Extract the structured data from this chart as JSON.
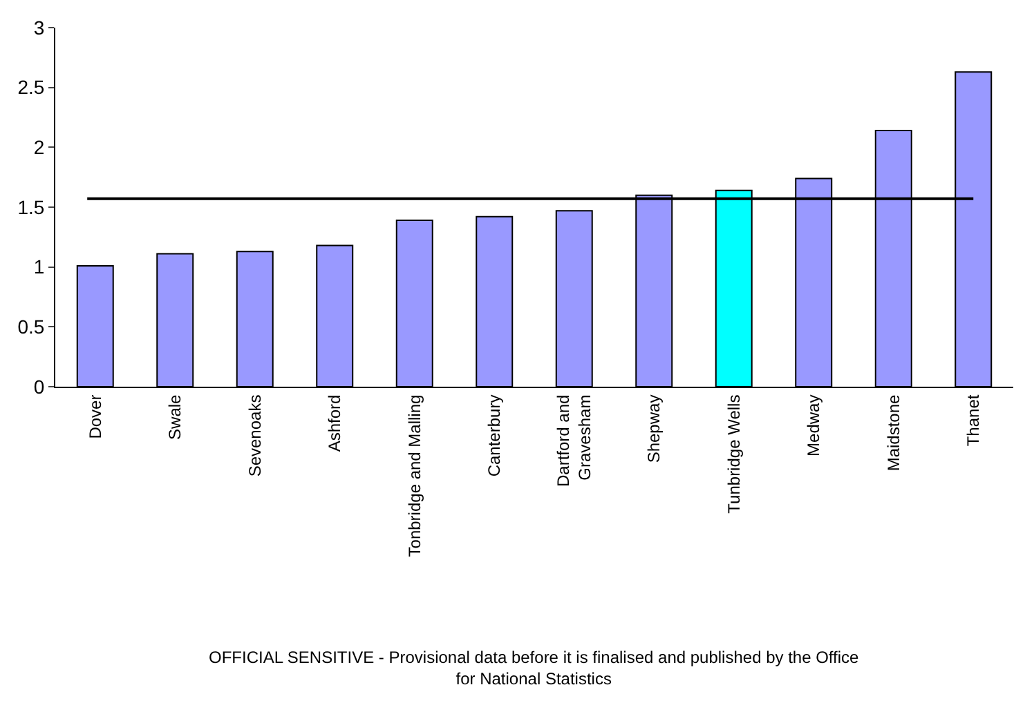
{
  "chart_data": {
    "type": "bar",
    "categories": [
      "Dover",
      "Swale",
      "Sevenoaks",
      "Ashford",
      "Tonbridge and Malling",
      "Canterbury",
      "Dartford and Gravesham",
      "Shepway",
      "Tunbridge Wells",
      "Medway",
      "Maidstone",
      "Thanet"
    ],
    "values": [
      1.01,
      1.11,
      1.13,
      1.18,
      1.39,
      1.42,
      1.47,
      1.6,
      1.64,
      1.74,
      2.14,
      2.63
    ],
    "colors": [
      "#9999ff",
      "#9999ff",
      "#9999ff",
      "#9999ff",
      "#9999ff",
      "#9999ff",
      "#9999ff",
      "#9999ff",
      "#00ffff",
      "#9999ff",
      "#9999ff",
      "#9999ff"
    ],
    "ylim": [
      0,
      3
    ],
    "yticks": [
      0,
      0.5,
      1,
      1.5,
      2,
      2.5,
      3
    ],
    "legend": false,
    "ref_lines": [
      {
        "axis": "y",
        "value": 1.57,
        "color": "#000000"
      }
    ],
    "annotations": [
      "OFFICIAL SENSITIVE - Provisional data before it is finalised and published by the Office for National Statistics"
    ]
  }
}
